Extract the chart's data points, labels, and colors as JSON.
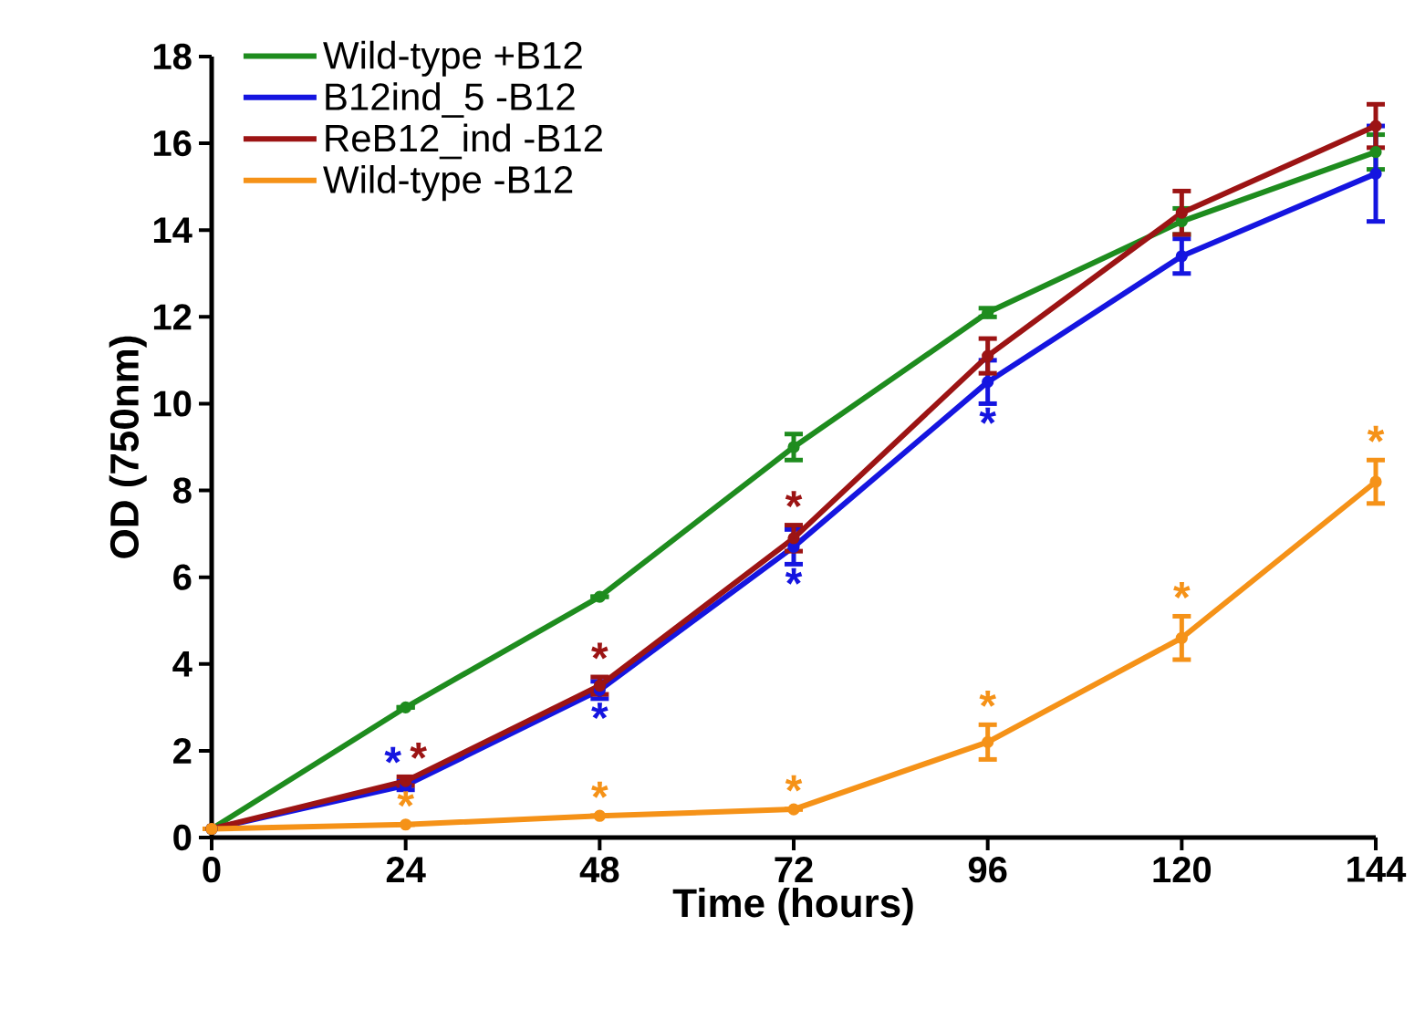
{
  "chart_data": {
    "type": "line",
    "xlabel": "Time (hours)",
    "ylabel": "OD (750nm)",
    "x": [
      0,
      24,
      48,
      72,
      96,
      120,
      144
    ],
    "xlim": [
      0,
      144
    ],
    "xticks": [
      0,
      24,
      48,
      72,
      96,
      120,
      144
    ],
    "ylim": [
      0,
      18
    ],
    "yticks": [
      0,
      2,
      4,
      6,
      8,
      10,
      12,
      14,
      16,
      18
    ],
    "grid": false,
    "legend": "top left",
    "marker": "circle",
    "line_style": "solid",
    "series": [
      {
        "name": "Wild-type +B12",
        "color": "#1e8c1e",
        "values": [
          0.2,
          3.0,
          5.55,
          9.0,
          12.1,
          14.2,
          15.8
        ],
        "errors": [
          null,
          null,
          null,
          0.3,
          0.1,
          0.3,
          0.4
        ]
      },
      {
        "name": "B12ind_5 -B12",
        "color": "#1515e0",
        "values": [
          0.2,
          1.2,
          3.4,
          6.7,
          10.5,
          13.4,
          15.3
        ],
        "errors": [
          null,
          0.1,
          0.2,
          0.4,
          0.5,
          0.4,
          1.1
        ]
      },
      {
        "name": "ReB12_ind -B12",
        "color": "#9c1414",
        "values": [
          0.2,
          1.3,
          3.5,
          6.9,
          11.1,
          14.4,
          16.4
        ],
        "errors": [
          null,
          0.1,
          0.2,
          0.3,
          0.4,
          0.5,
          0.5
        ]
      },
      {
        "name": "Wild-type -B12",
        "color": "#f59218",
        "values": [
          0.2,
          0.3,
          0.5,
          0.65,
          2.2,
          4.6,
          8.2
        ],
        "errors": [
          null,
          null,
          null,
          null,
          0.4,
          0.5,
          0.5
        ]
      }
    ],
    "annotations": [
      {
        "text": "*",
        "x": 24,
        "y": 1.2
      },
      {
        "text": "*",
        "x": 24,
        "y": 1.3
      },
      {
        "text": "*",
        "x": 24,
        "y": 0.3
      },
      {
        "text": "*",
        "x": 48,
        "y": 3.4
      },
      {
        "text": "*",
        "x": 48,
        "y": 3.5
      },
      {
        "text": "*",
        "x": 48,
        "y": 0.5
      },
      {
        "text": "*",
        "x": 72,
        "y": 6.9
      },
      {
        "text": "*",
        "x": 72,
        "y": 6.7
      },
      {
        "text": "*",
        "x": 72,
        "y": 0.65
      },
      {
        "text": "*",
        "x": 96,
        "y": 10.5
      },
      {
        "text": "*",
        "x": 96,
        "y": 2.2
      },
      {
        "text": "*",
        "x": 120,
        "y": 4.6
      },
      {
        "text": "*",
        "x": 144,
        "y": 8.2
      }
    ]
  }
}
